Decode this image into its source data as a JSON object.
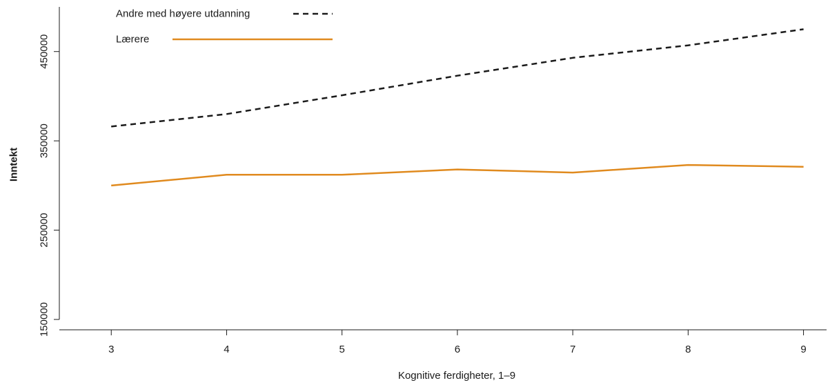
{
  "chart_data": {
    "type": "line",
    "title": "",
    "xlabel": "Kognitive ferdigheter, 1–9",
    "ylabel": "Inntekt",
    "x": [
      3,
      4,
      5,
      6,
      7,
      8,
      9
    ],
    "xticks": [
      "3",
      "4",
      "5",
      "6",
      "7",
      "8",
      "9"
    ],
    "yticks": [
      "150000",
      "250000",
      "350000",
      "450000"
    ],
    "ylim": [
      150000,
      500000
    ],
    "xlim": [
      2.55,
      9.2
    ],
    "grid": false,
    "legend_position": "top-left",
    "series": [
      {
        "name": "Andre med høyere utdanning",
        "color": "#1a1a1a",
        "style": "dashed",
        "values": [
          366000,
          380000,
          401000,
          423000,
          443000,
          457000,
          475000
        ]
      },
      {
        "name": "Lærere",
        "color": "#e08a1e",
        "style": "solid",
        "values": [
          300000,
          312000,
          312000,
          318000,
          314500,
          323000,
          321000
        ]
      }
    ]
  }
}
